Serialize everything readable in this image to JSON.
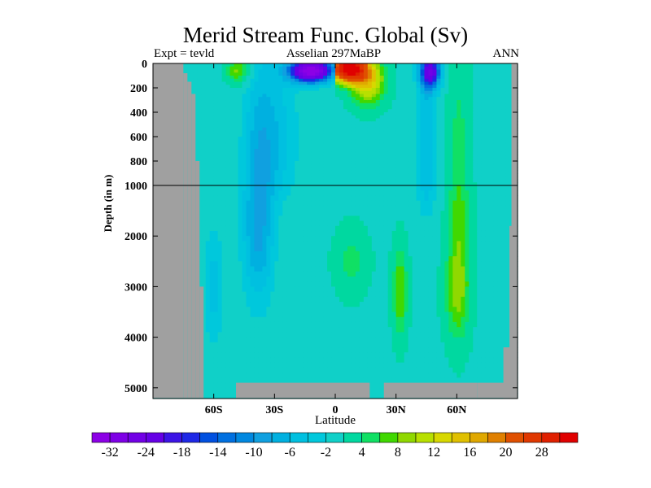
{
  "chart_data": {
    "type": "heatmap",
    "title": "Merid Stream Func. Global (Sv)",
    "left_subtitle": "Expt = tevld",
    "center_subtitle": "Asselian 297MaBP",
    "right_subtitle": "ANN",
    "xlabel": "Latitude",
    "ylabel": "Depth (in m)",
    "xlim": [
      -90,
      90
    ],
    "ylim": [
      5200,
      0
    ],
    "x_ticks": [
      {
        "value": -60,
        "label": "60S"
      },
      {
        "value": -30,
        "label": "30S"
      },
      {
        "value": 0,
        "label": "0"
      },
      {
        "value": 30,
        "label": "30N"
      },
      {
        "value": 60,
        "label": "60N"
      }
    ],
    "y_ticks": [
      {
        "value": 0,
        "label": "0"
      },
      {
        "value": 200,
        "label": "200"
      },
      {
        "value": 400,
        "label": "400"
      },
      {
        "value": 600,
        "label": "600"
      },
      {
        "value": 800,
        "label": "800"
      },
      {
        "value": 1000,
        "label": "1000"
      },
      {
        "value": 2000,
        "label": "2000"
      },
      {
        "value": 3000,
        "label": "3000"
      },
      {
        "value": 4000,
        "label": "4000"
      },
      {
        "value": 5000,
        "label": "5000"
      }
    ],
    "reference_line_depth": 1000,
    "levels": [
      -32,
      -28,
      -24,
      -20,
      -18,
      -16,
      -14,
      -12,
      -10,
      -8,
      -6,
      -4,
      -2,
      1,
      4,
      6,
      8,
      10,
      12,
      14,
      16,
      18,
      20,
      24,
      28,
      32
    ],
    "colorbar_labels": [
      "-32",
      "-24",
      "-18",
      "-14",
      "-10",
      "-6",
      "-2",
      "4",
      "8",
      "12",
      "16",
      "20",
      "28"
    ],
    "colors": [
      "#8c00e6",
      "#7e00e6",
      "#7200e6",
      "#6600e6",
      "#3c14e6",
      "#1e28e6",
      "#0050e0",
      "#0070e0",
      "#0088e0",
      "#10a0e0",
      "#00b0e0",
      "#00c0e0",
      "#00c8dc",
      "#10d0c8",
      "#00d8a0",
      "#10e064",
      "#40d800",
      "#90d800",
      "#b8e000",
      "#d8d800",
      "#e0c000",
      "#e0a800",
      "#e08000",
      "#e05000",
      "#e03800",
      "#e02000",
      "#e00000"
    ],
    "land_color": "#a0a0a0",
    "features": [
      {
        "lat": -12,
        "depth": 60,
        "slat": 10,
        "sdep": 90,
        "amp": -36,
        "latmax": 0
      },
      {
        "lat": 6,
        "depth": 40,
        "slat": 9,
        "sdep": 110,
        "amp": 34,
        "latmin": 0
      },
      {
        "lat": 16,
        "depth": 150,
        "slat": 9,
        "sdep": 200,
        "amp": 14,
        "latmin": 0
      },
      {
        "lat": -48,
        "depth": 60,
        "slat": 6,
        "sdep": 110,
        "amp": 9
      },
      {
        "lat": 47,
        "depth": 70,
        "slat": 5,
        "sdep": 130,
        "amp": -22
      },
      {
        "lat": 45,
        "depth": 700,
        "slat": 5,
        "sdep": 900,
        "amp": -6
      },
      {
        "lat": 61,
        "depth": 1800,
        "slat": 6,
        "sdep": 2000,
        "amp": 7
      },
      {
        "lat": -38,
        "depth": 1800,
        "slat": 8,
        "sdep": 1500,
        "amp": -9
      },
      {
        "lat": -30,
        "depth": 600,
        "slat": 12,
        "sdep": 700,
        "amp": -5
      },
      {
        "lat": -60,
        "depth": 3000,
        "slat": 5,
        "sdep": 1200,
        "amp": -5
      },
      {
        "lat": 32,
        "depth": 3100,
        "slat": 4,
        "sdep": 1000,
        "amp": 8
      },
      {
        "lat": 8,
        "depth": 2500,
        "slat": 9,
        "sdep": 700,
        "amp": 5
      },
      {
        "lat": 60,
        "depth": 3200,
        "slat": 7,
        "sdep": 900,
        "amp": 5
      }
    ],
    "land": [
      {
        "lat": [
          -90,
          -75
        ],
        "depth": [
          0,
          5200
        ]
      },
      {
        "lat": [
          -75,
          -73
        ],
        "depth": [
          80,
          5200
        ]
      },
      {
        "lat": [
          -73,
          -71
        ],
        "depth": [
          150,
          5200
        ]
      },
      {
        "lat": [
          -71,
          -69
        ],
        "depth": [
          250,
          5200
        ]
      },
      {
        "lat": [
          -69,
          -67
        ],
        "depth": [
          800,
          5200
        ]
      },
      {
        "lat": [
          -67,
          -65
        ],
        "depth": [
          3000,
          5200
        ]
      },
      {
        "lat": [
          -49,
          17
        ],
        "depth": [
          4900,
          5200
        ]
      },
      {
        "lat": [
          24,
          70
        ],
        "depth": [
          4900,
          5200
        ]
      },
      {
        "lat": [
          70,
          90
        ],
        "depth": [
          4900,
          5200
        ]
      },
      {
        "lat": [
          83,
          90
        ],
        "depth": [
          4200,
          5200
        ]
      },
      {
        "lat": [
          86,
          90
        ],
        "depth": [
          1800,
          5200
        ]
      },
      {
        "lat": [
          87,
          90
        ],
        "depth": [
          0,
          5200
        ]
      }
    ]
  }
}
